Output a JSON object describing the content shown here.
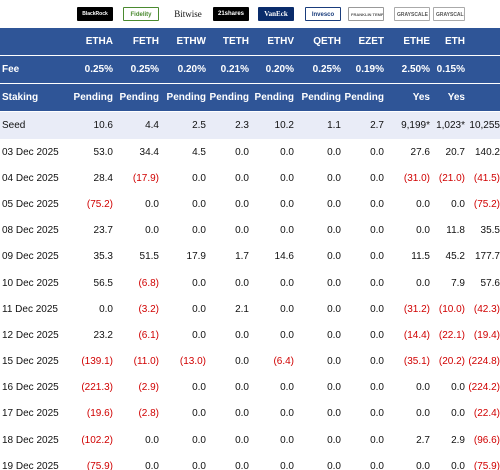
{
  "logos": [
    {
      "name": "blackrock-logo",
      "text": "BlackRock",
      "cls": "logo-blackrock"
    },
    {
      "name": "fidelity-logo",
      "text": "Fidelity",
      "cls": "logo-fidelity"
    },
    {
      "name": "bitwise-logo",
      "text": "Bitwise",
      "cls": "logo-bitwise"
    },
    {
      "name": "21shares-logo",
      "text": "21shares",
      "cls": "logo-21shares"
    },
    {
      "name": "vaneck-logo",
      "text": "VanEck",
      "cls": "logo-vaneck"
    },
    {
      "name": "invesco-logo",
      "text": "Invesco",
      "cls": "logo-invesco"
    },
    {
      "name": "franklin-templeton-logo",
      "text": "FRANKLIN TEMPLETON",
      "cls": "logo-franklin"
    },
    {
      "name": "grayscale-ethe-logo",
      "text": "GRAYSCALE",
      "cls": "logo-grayscale"
    },
    {
      "name": "grayscale-eth-logo",
      "text": "GRAYSCALE",
      "cls": "logo-grayscale"
    },
    {
      "name": "total-logo",
      "text": "",
      "cls": ""
    }
  ],
  "tickers": [
    "",
    "ETHA",
    "FETH",
    "ETHW",
    "TETH",
    "ETHV",
    "QETH",
    "EZET",
    "ETHE",
    "ETH",
    ""
  ],
  "fee": [
    "Fee",
    "0.25%",
    "0.25%",
    "0.20%",
    "0.21%",
    "0.20%",
    "0.25%",
    "0.19%",
    "2.50%",
    "0.15%",
    ""
  ],
  "staking": [
    "Staking",
    "Pending",
    "Pending",
    "Pending",
    "Pending",
    "Pending",
    "Pending",
    "Pending",
    "Yes",
    "Yes",
    ""
  ],
  "seed": [
    "Seed",
    "10.6",
    "4.4",
    "2.5",
    "2.3",
    "10.2",
    "1.1",
    "2.7",
    "9,199*",
    "1,023*",
    "10,255"
  ],
  "rows": [
    [
      "03 Dec 2025",
      "53.0",
      "34.4",
      "4.5",
      "0.0",
      "0.0",
      "0.0",
      "0.0",
      "27.6",
      "20.7",
      "140.2"
    ],
    [
      "04 Dec 2025",
      "28.4",
      "(17.9)",
      "0.0",
      "0.0",
      "0.0",
      "0.0",
      "0.0",
      "(31.0)",
      "(21.0)",
      "(41.5)"
    ],
    [
      "05 Dec 2025",
      "(75.2)",
      "0.0",
      "0.0",
      "0.0",
      "0.0",
      "0.0",
      "0.0",
      "0.0",
      "0.0",
      "(75.2)"
    ],
    [
      "08 Dec 2025",
      "23.7",
      "0.0",
      "0.0",
      "0.0",
      "0.0",
      "0.0",
      "0.0",
      "0.0",
      "11.8",
      "35.5"
    ],
    [
      "09 Dec 2025",
      "35.3",
      "51.5",
      "17.9",
      "1.7",
      "14.6",
      "0.0",
      "0.0",
      "11.5",
      "45.2",
      "177.7"
    ],
    [
      "10 Dec 2025",
      "56.5",
      "(6.8)",
      "0.0",
      "0.0",
      "0.0",
      "0.0",
      "0.0",
      "0.0",
      "7.9",
      "57.6"
    ],
    [
      "11 Dec 2025",
      "0.0",
      "(3.2)",
      "0.0",
      "2.1",
      "0.0",
      "0.0",
      "0.0",
      "(31.2)",
      "(10.0)",
      "(42.3)"
    ],
    [
      "12 Dec 2025",
      "23.2",
      "(6.1)",
      "0.0",
      "0.0",
      "0.0",
      "0.0",
      "0.0",
      "(14.4)",
      "(22.1)",
      "(19.4)"
    ],
    [
      "15 Dec 2025",
      "(139.1)",
      "(11.0)",
      "(13.0)",
      "0.0",
      "(6.4)",
      "0.0",
      "0.0",
      "(35.1)",
      "(20.2)",
      "(224.8)"
    ],
    [
      "16 Dec 2025",
      "(221.3)",
      "(2.9)",
      "0.0",
      "0.0",
      "0.0",
      "0.0",
      "0.0",
      "0.0",
      "0.0",
      "(224.2)"
    ],
    [
      "17 Dec 2025",
      "(19.6)",
      "(2.8)",
      "0.0",
      "0.0",
      "0.0",
      "0.0",
      "0.0",
      "0.0",
      "0.0",
      "(22.4)"
    ],
    [
      "18 Dec 2025",
      "(102.2)",
      "0.0",
      "0.0",
      "0.0",
      "0.0",
      "0.0",
      "0.0",
      "2.7",
      "2.9",
      "(96.6)"
    ],
    [
      "19 Dec 2025",
      "(75.9)",
      "0.0",
      "0.0",
      "0.0",
      "0.0",
      "0.0",
      "0.0",
      "0.0",
      "0.0",
      "(75.9)"
    ]
  ]
}
